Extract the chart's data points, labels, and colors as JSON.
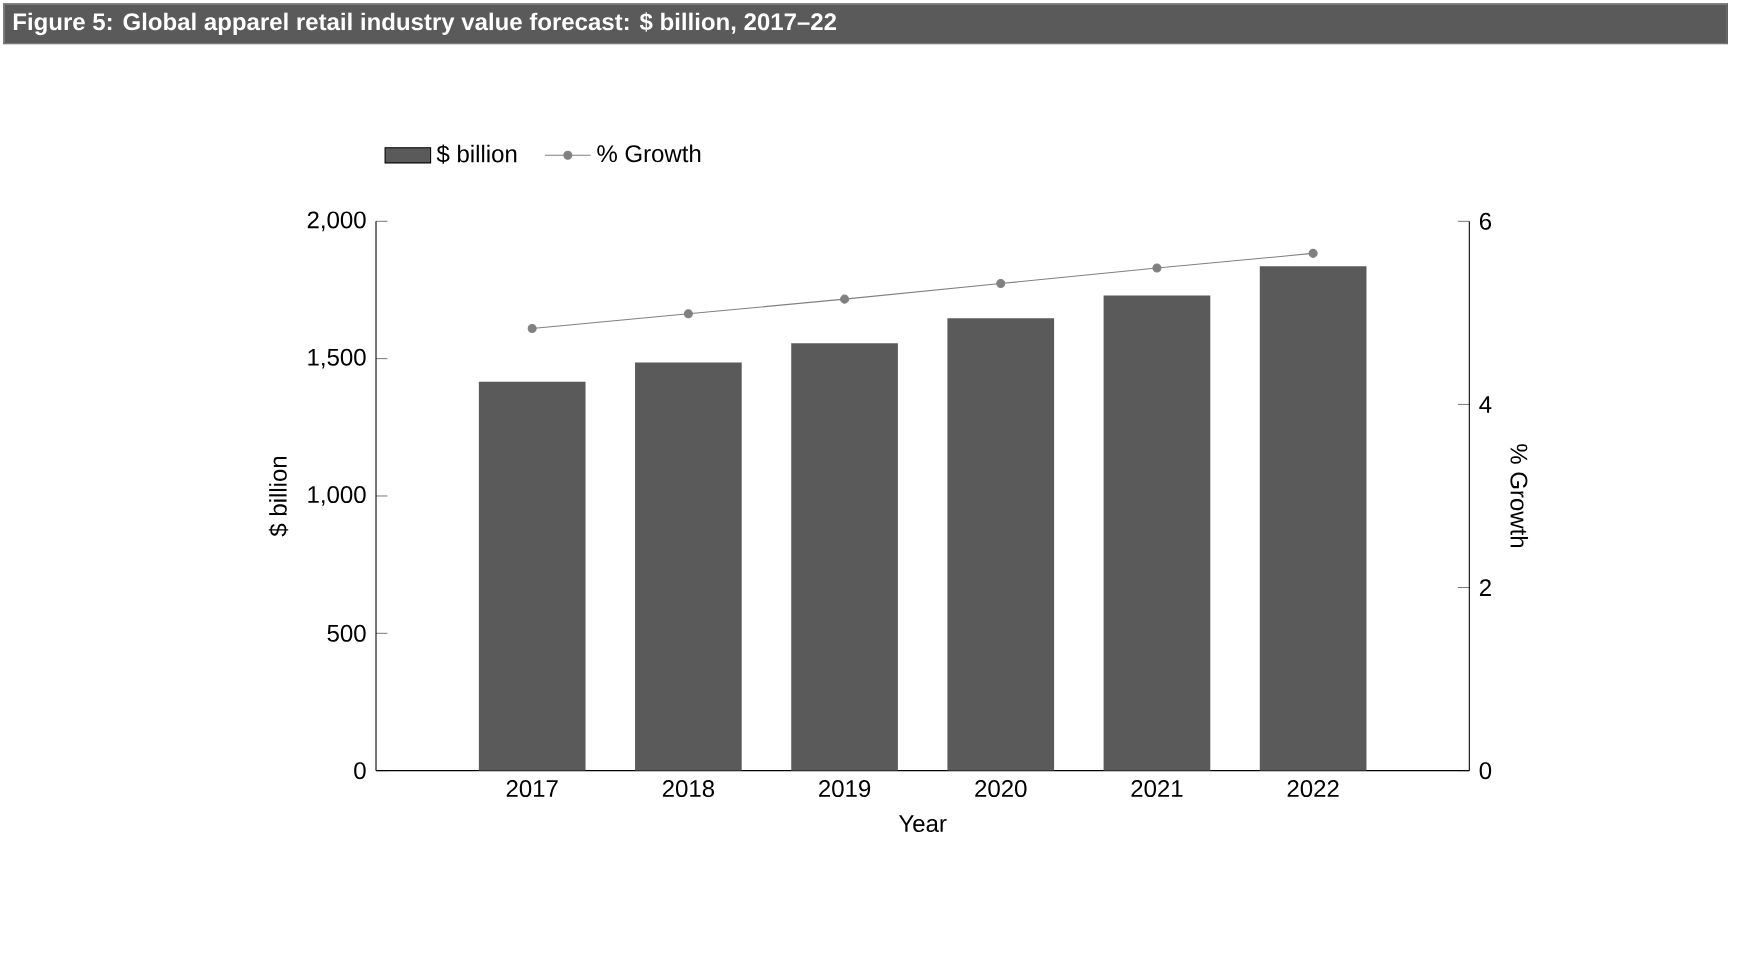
{
  "chart_data": {
    "type": "bar",
    "title": "Figure 5: Global apparel retail industry value forecast: $ billion, 2017–22",
    "xlabel": "Year",
    "ylabel": "$ billion",
    "y2label": "% Growth",
    "categories": [
      "2017",
      "2018",
      "2019",
      "2020",
      "2021",
      "2022"
    ],
    "series": [
      {
        "name": "$ billion",
        "color": "#5a5a5a",
        "values": [
          1416,
          1486,
          1556,
          1647,
          1730,
          1836
        ]
      },
      {
        "name": "% Growth",
        "type": "line",
        "axis": "y2",
        "color": "#808080",
        "values": [
          4.83,
          4.99,
          5.15,
          5.32,
          5.49,
          5.65
        ]
      }
    ],
    "ylim": [
      0,
      2000
    ],
    "yticks": [
      0,
      500,
      {
        "value": 1000,
        "label": "1,000"
      },
      {
        "value": 1500,
        "label": "1,500"
      },
      {
        "value": 2000,
        "label": "2,000"
      }
    ],
    "y2lim": [
      0,
      6
    ],
    "y2ticks": [
      0,
      2,
      4,
      6
    ],
    "legend": "top left",
    "marker": "circle",
    "line_style": "solid"
  }
}
